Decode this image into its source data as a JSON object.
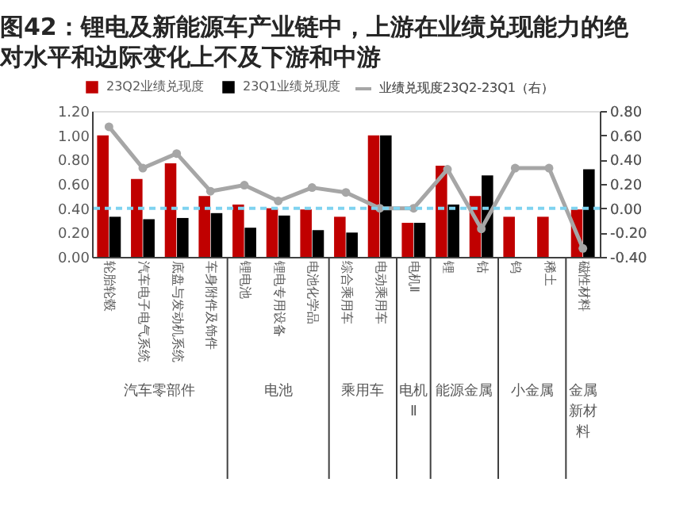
{
  "chart_data": {
    "type": "bar",
    "title": "图42：锂电及新能源车产业链中，上游在业绩兑现能力的绝对水平和边际变化上不及下游和中游",
    "categories": [
      "轮胎轮毂",
      "汽车电子电气系统",
      "底盘与发动机系统",
      "车身附件及饰件",
      "锂电池",
      "锂电专用设备",
      "电池化学品",
      "综合乘用车",
      "电动乘用车",
      "电机Ⅱ",
      "锂",
      "钴",
      "钨",
      "稀土",
      "磁性材料"
    ],
    "series": [
      {
        "name": "23Q2业绩兑现度",
        "color": "#c00000",
        "values": [
          1.0,
          0.64,
          0.77,
          0.5,
          0.43,
          0.4,
          0.39,
          0.33,
          1.0,
          0.28,
          0.75,
          0.5,
          0.33,
          0.33,
          0.39
        ]
      },
      {
        "name": "23Q1业绩兑现度",
        "color": "#000000",
        "values": [
          0.33,
          0.31,
          0.32,
          0.36,
          0.24,
          0.34,
          0.22,
          0.2,
          1.0,
          0.28,
          0.43,
          0.67,
          null,
          null,
          0.72
        ]
      },
      {
        "name": "业绩兑现度23Q2-23Q1（右）",
        "color": "#a6a6a6",
        "type": "line",
        "axis": "y2",
        "marker": "circle",
        "values": [
          0.67,
          0.33,
          0.45,
          0.14,
          0.19,
          0.06,
          0.17,
          0.13,
          0.0,
          0.0,
          0.32,
          -0.17,
          0.33,
          0.33,
          -0.33
        ]
      }
    ],
    "ylim": [
      0,
      1.2
    ],
    "yticks": [
      {
        "value": 0,
        "label": "0.00"
      },
      {
        "value": 0.2,
        "label": "0.20"
      },
      {
        "value": 0.4,
        "label": "0.40"
      },
      {
        "value": 0.6,
        "label": "0.60"
      },
      {
        "value": 0.8,
        "label": "0.80"
      },
      {
        "value": 1.0,
        "label": "1.00"
      },
      {
        "value": 1.2,
        "label": "1.20"
      }
    ],
    "y2lim": [
      -0.4,
      0.8
    ],
    "y2ticks": [
      {
        "value": -0.4,
        "label": "-0.40"
      },
      {
        "value": -0.2,
        "label": "-0.20"
      },
      {
        "value": 0,
        "label": "0.00"
      },
      {
        "value": 0.2,
        "label": "0.20"
      },
      {
        "value": 0.4,
        "label": "0.40"
      },
      {
        "value": 0.6,
        "label": "0.60"
      },
      {
        "value": 0.8,
        "label": "0.80"
      }
    ],
    "ref_lines": [
      {
        "axis": "y2",
        "value": 0,
        "color": "#7fd3f0",
        "line_style": "dashed"
      }
    ],
    "annotations": [
      "汽车零部件",
      "电池",
      "乘用车",
      "电机Ⅱ",
      "能源金属",
      "小金属",
      "金属新材料"
    ],
    "legend": "top"
  }
}
